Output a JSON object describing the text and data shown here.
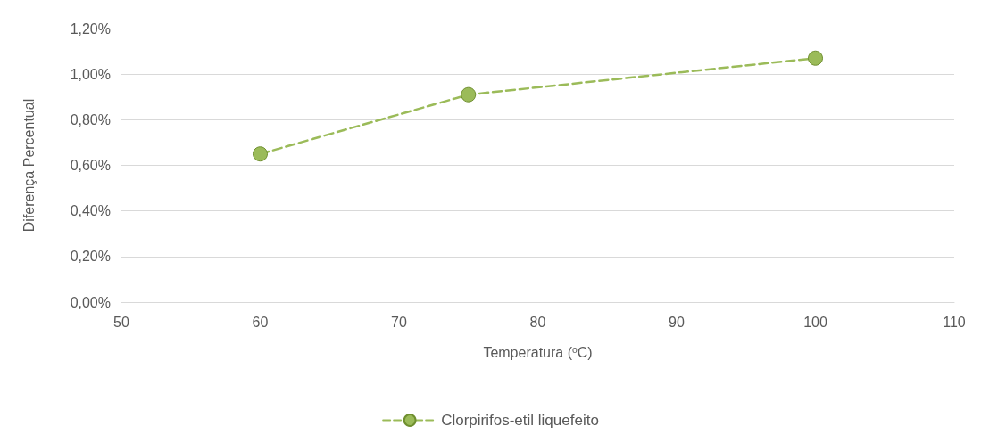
{
  "chart_data": {
    "type": "line",
    "xlabel": "Temperatura ($^{o}$C)",
    "ylabel": "Diferença Percentual",
    "x": [
      60,
      75,
      100
    ],
    "series": [
      {
        "name": "Clorpirifos-etil liquefeito",
        "color": "#9bbb59",
        "values": [
          0.65,
          0.91,
          1.07
        ]
      }
    ],
    "xlim": [
      50,
      110
    ],
    "xticks": [
      50,
      60,
      70,
      80,
      90,
      100,
      110
    ],
    "ylim": [
      0,
      1.2
    ],
    "yticks": [
      {
        "value": 0,
        "label": "0,00%"
      },
      {
        "value": 0.2,
        "label": "0,20%"
      },
      {
        "value": 0.4,
        "label": "0,40%"
      },
      {
        "value": 0.6,
        "label": "0,60%"
      },
      {
        "value": 0.8,
        "label": "0,80%"
      },
      {
        "value": 1.0,
        "label": "1,00%"
      },
      {
        "value": 1.2,
        "label": "1,20%"
      }
    ],
    "grid": "y",
    "legend": "bottom",
    "marker": "circle",
    "line_style": "dashed"
  }
}
